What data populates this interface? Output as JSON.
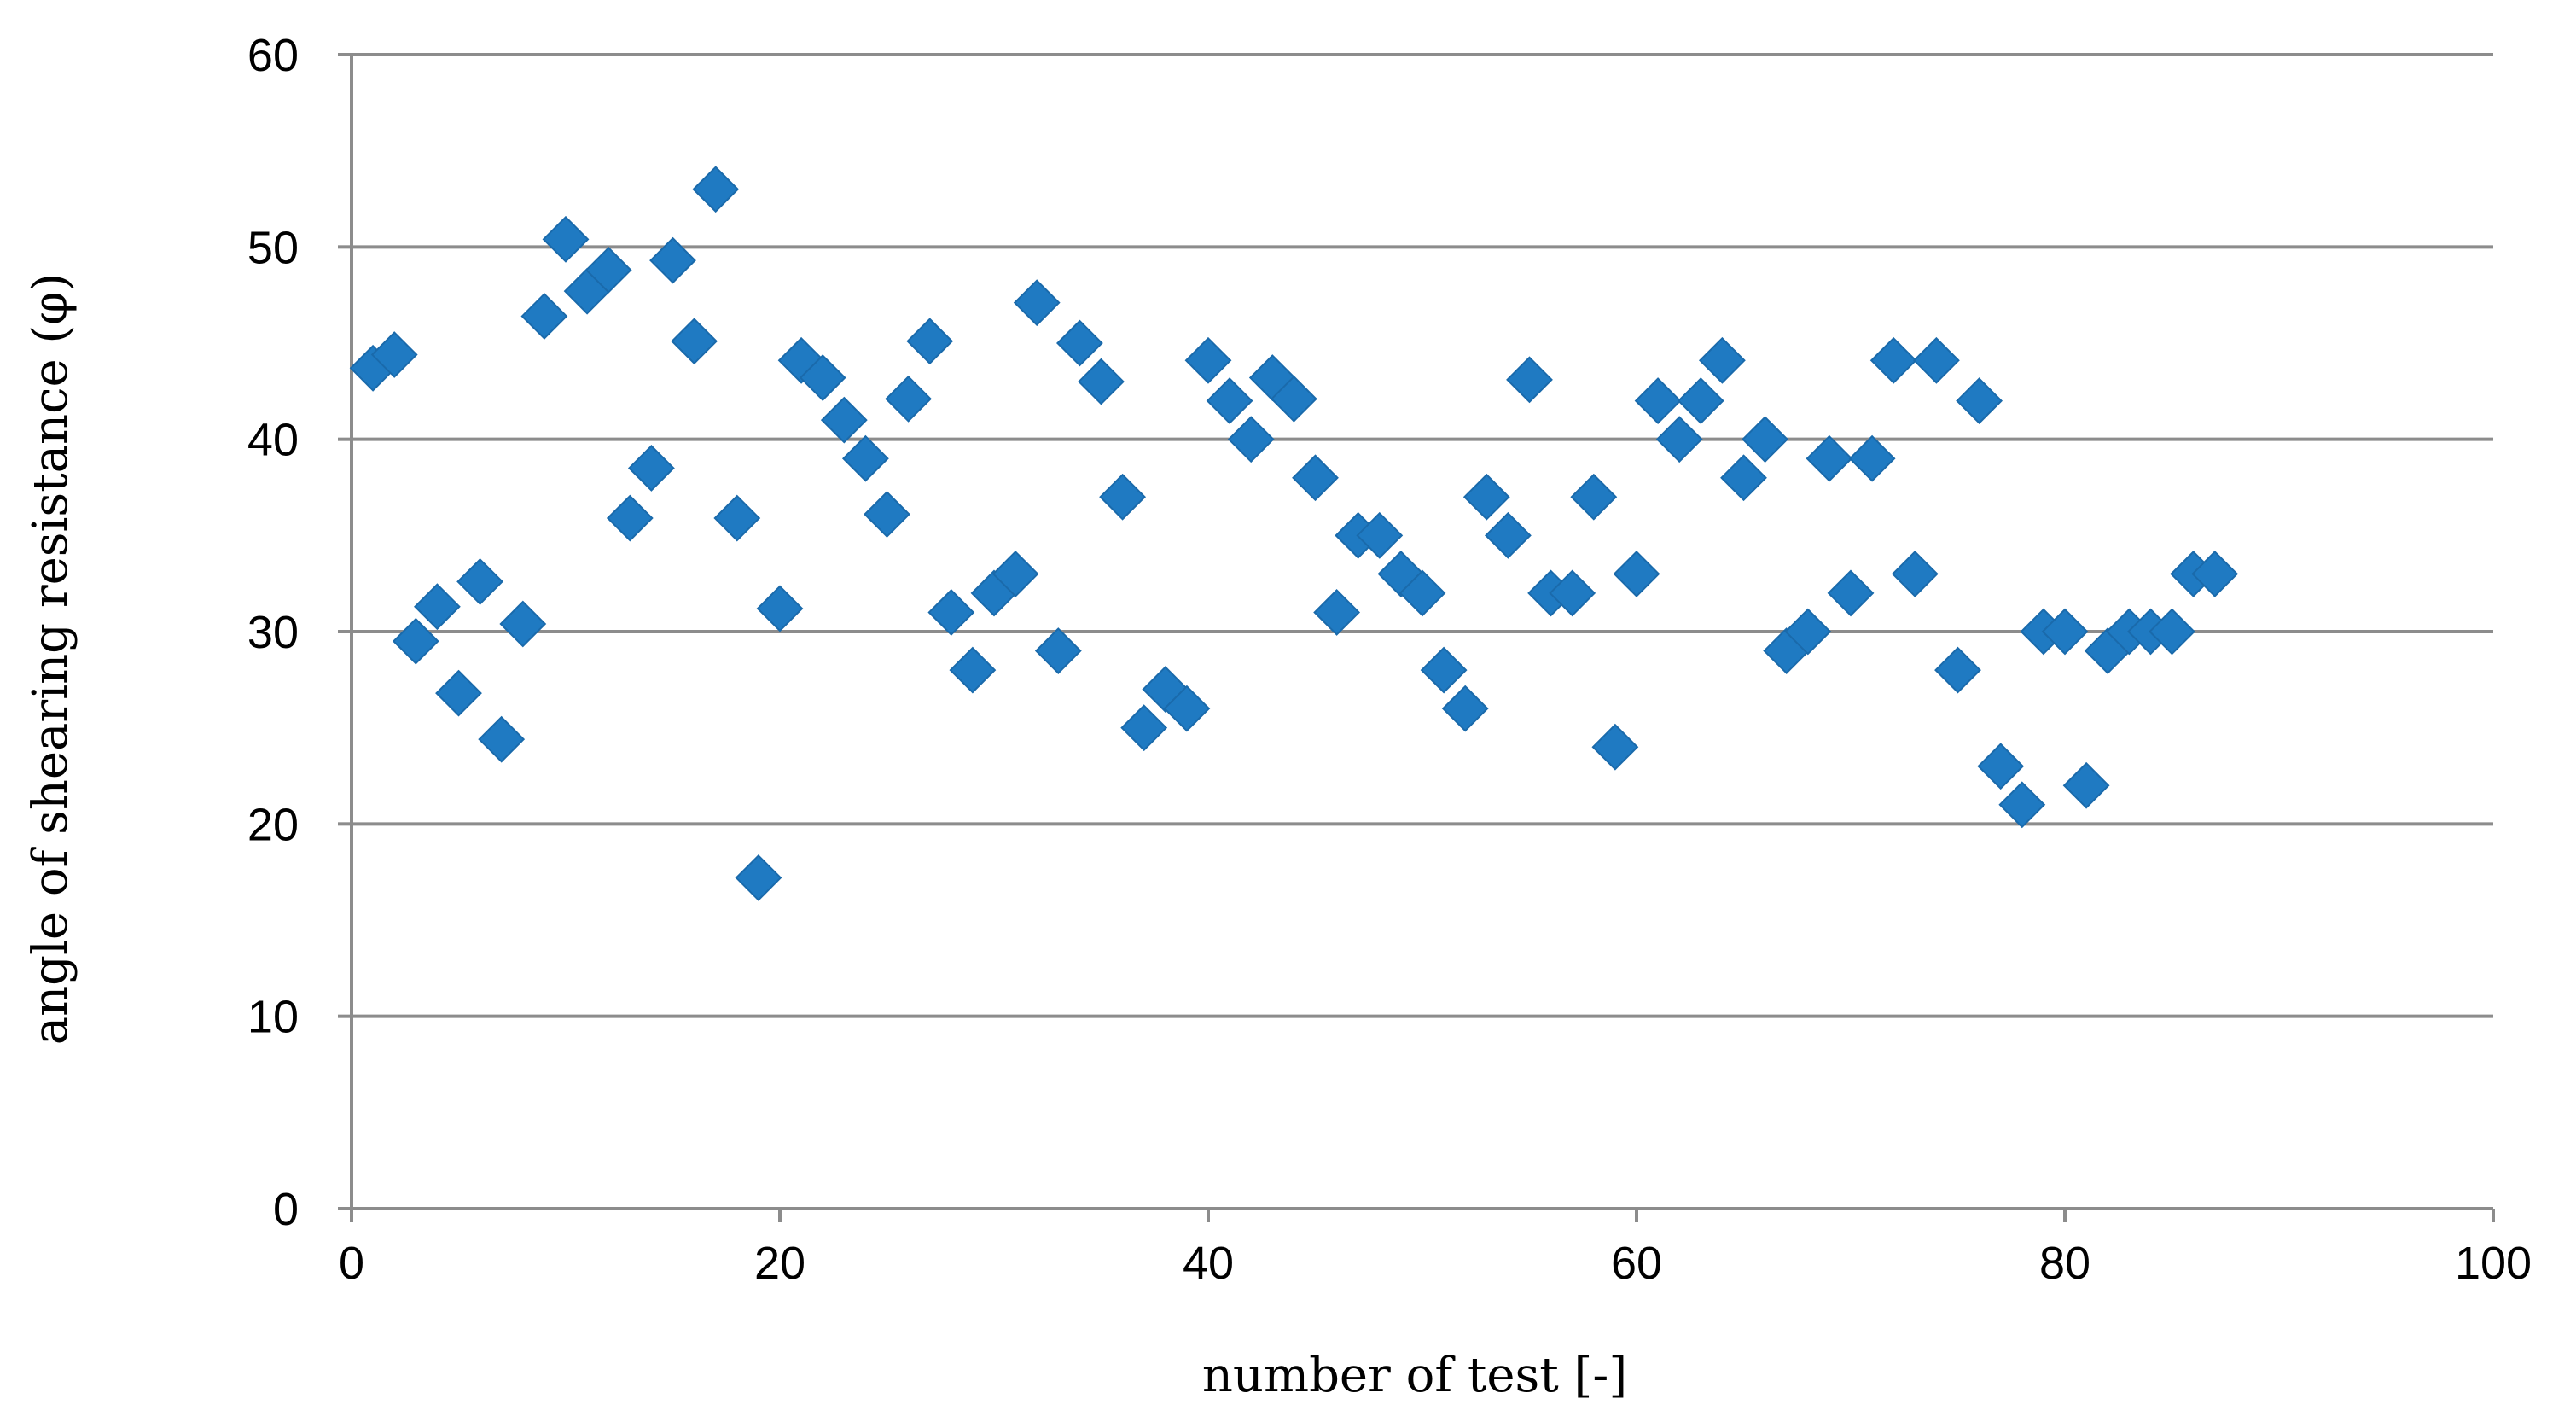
{
  "chart_data": {
    "type": "scatter",
    "xlabel": "number of test [-]",
    "ylabel": "angle of shearing resistance (φ)",
    "xlim": [
      0,
      100
    ],
    "ylim": [
      0,
      60
    ],
    "xticks": [
      0,
      20,
      40,
      60,
      80,
      100
    ],
    "yticks": [
      0,
      10,
      20,
      30,
      40,
      50,
      60
    ],
    "grid": "horizontal",
    "legend": "none",
    "marker": "diamond",
    "marker_color": "#1f7ac2",
    "series": [
      {
        "x": [
          1,
          2,
          3,
          4,
          5,
          6,
          7,
          8,
          9,
          10,
          11,
          12,
          13,
          14,
          15,
          16,
          17,
          18,
          19,
          20,
          21,
          22,
          23,
          24,
          25,
          26,
          27,
          28,
          29,
          30,
          31,
          32,
          33,
          34,
          35,
          36,
          37,
          38,
          39,
          40,
          41,
          42,
          43,
          44,
          45,
          46,
          47,
          48,
          49,
          50,
          51,
          52,
          53,
          54,
          55,
          56,
          57,
          58,
          59,
          60,
          61,
          62,
          63,
          64,
          65,
          66,
          67,
          68,
          69,
          70,
          71,
          72,
          73,
          74,
          75,
          76,
          77,
          78,
          79,
          80,
          81,
          82,
          83,
          84,
          85,
          86,
          87
        ],
        "y": [
          43.7,
          44.4,
          29.5,
          31.3,
          26.8,
          32.6,
          24.4,
          30.4,
          46.4,
          50.4,
          47.7,
          48.8,
          35.9,
          38.5,
          49.3,
          45.1,
          53.0,
          35.9,
          17.2,
          31.2,
          44.1,
          43.2,
          41.0,
          39.0,
          36.1,
          42.1,
          45.1,
          31.0,
          28.0,
          32.0,
          33.0,
          47.1,
          29.0,
          45.0,
          43.0,
          37.0,
          25.0,
          27.0,
          26.0,
          44.1,
          42.0,
          40.0,
          43.2,
          42.1,
          38.0,
          31.0,
          35.0,
          35.0,
          33.0,
          32.0,
          28.0,
          26.0,
          37.0,
          35.0,
          43.1,
          32.0,
          32.0,
          37.0,
          24.0,
          33.0,
          42.0,
          40.0,
          42.0,
          44.1,
          38.0,
          40.0,
          29.0,
          30.0,
          39.0,
          32.0,
          39.0,
          44.1,
          33.0,
          44.1,
          28.0,
          42.0,
          23.0,
          21.0,
          30.0,
          30.0,
          22.0,
          29.0,
          30.0,
          30.0,
          30.0,
          33.0,
          33.0
        ]
      }
    ]
  }
}
